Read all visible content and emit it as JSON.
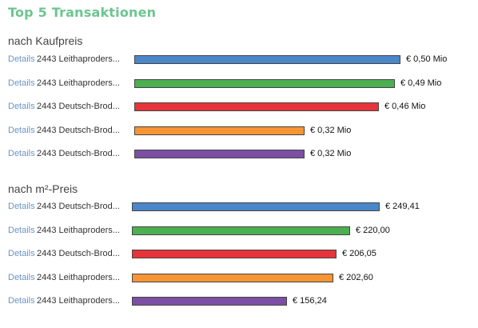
{
  "header": {
    "title": "Top 5 Transaktionen"
  },
  "link_label": "Details",
  "chart_data": [
    {
      "type": "bar",
      "orientation": "horizontal",
      "title": "nach Kaufpreis",
      "categories": [
        "2443 Leithaproders...",
        "2443 Leithaproders...",
        "2443 Deutsch-Brod...",
        "2443 Deutsch-Brod...",
        "2443 Deutsch-Brod..."
      ],
      "values": [
        0.5,
        0.49,
        0.46,
        0.32,
        0.32
      ],
      "value_labels": [
        "€ 0,50 Mio",
        "€ 0,49 Mio",
        "€ 0,46 Mio",
        "€ 0,32 Mio",
        "€ 0,32 Mio"
      ],
      "colors": [
        "#4a86c8",
        "#4caf50",
        "#e8333a",
        "#f79433",
        "#7b4fa3"
      ],
      "xlim": [
        0,
        0.5
      ]
    },
    {
      "type": "bar",
      "orientation": "horizontal",
      "title": "nach m²-Preis",
      "categories": [
        "2443 Deutsch-Brod...",
        "2443 Leithaproders...",
        "2443 Deutsch-Brod...",
        "2443 Leithaproders...",
        "2443 Leithaproders..."
      ],
      "values": [
        249.41,
        220.0,
        206.05,
        202.6,
        156.24
      ],
      "value_labels": [
        "€ 249,41",
        "€ 220,00",
        "€ 206,05",
        "€ 202,60",
        "€ 156,24"
      ],
      "colors": [
        "#4a86c8",
        "#4caf50",
        "#e8333a",
        "#f79433",
        "#7b4fa3"
      ],
      "xlim": [
        0,
        249.41
      ]
    }
  ]
}
